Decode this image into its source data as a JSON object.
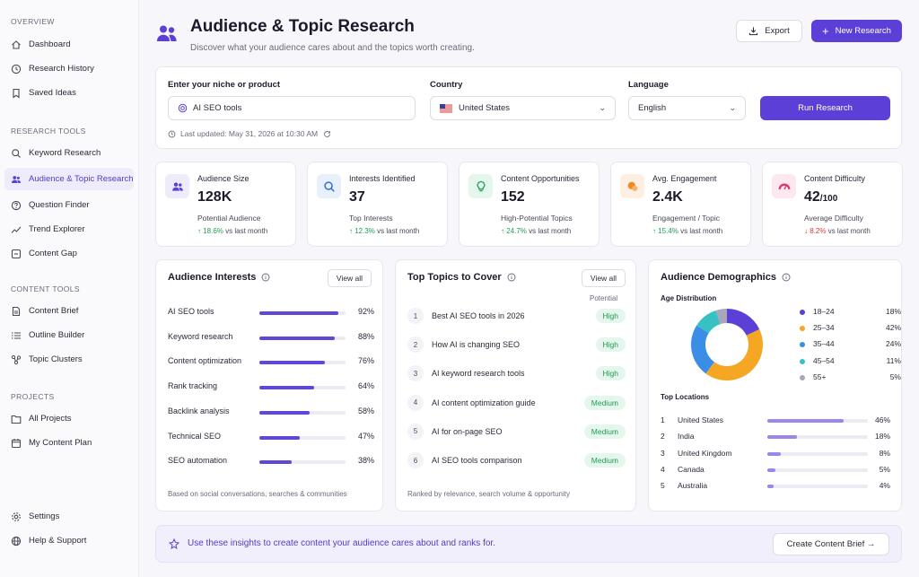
{
  "sidebar": {
    "sections": [
      {
        "title": "OVERVIEW",
        "items": [
          {
            "label": "Dashboard",
            "icon": "home-icon"
          },
          {
            "label": "Research History",
            "icon": "clock-icon"
          },
          {
            "label": "Saved Ideas",
            "icon": "bookmark-icon"
          }
        ]
      },
      {
        "title": "RESEARCH TOOLS",
        "items": [
          {
            "label": "Keyword Research",
            "icon": "search-icon"
          },
          {
            "label": "Audience & Topic Research",
            "icon": "users-icon",
            "active": true
          },
          {
            "label": "Question Finder",
            "icon": "question-icon"
          },
          {
            "label": "Trend Explorer",
            "icon": "trend-icon"
          },
          {
            "label": "Content Gap",
            "icon": "gap-icon"
          }
        ]
      },
      {
        "title": "CONTENT TOOLS",
        "items": [
          {
            "label": "Content Brief",
            "icon": "document-icon"
          },
          {
            "label": "Outline Builder",
            "icon": "list-icon"
          },
          {
            "label": "Topic Clusters",
            "icon": "cluster-icon"
          }
        ]
      },
      {
        "title": "PROJECTS",
        "items": [
          {
            "label": "All Projects",
            "icon": "folder-icon"
          },
          {
            "label": "My Content Plan",
            "icon": "calendar-icon"
          }
        ]
      }
    ],
    "bottom": [
      {
        "label": "Settings",
        "icon": "gear-icon"
      },
      {
        "label": "Help & Support",
        "icon": "globe-icon"
      }
    ]
  },
  "header": {
    "title": "Audience & Topic Research",
    "subtitle": "Discover what your audience cares about and the topics worth creating.",
    "export_label": "Export",
    "new_label": "New Research"
  },
  "form": {
    "niche_label": "Enter your niche or product",
    "niche_value": "AI SEO tools",
    "country_label": "Country",
    "country_value": "United States",
    "language_label": "Language",
    "language_value": "English",
    "run_label": "Run Research",
    "updated": "Last updated: May 31, 2026 at 10:30 AM"
  },
  "stats": [
    {
      "title": "Audience Size",
      "value": "128K",
      "suffix": "",
      "sub": "Potential Audience",
      "delta": "↑ 18.6%",
      "delta_text": " vs last month",
      "trend": "up",
      "icon": "users-icon",
      "color": "#5b3fd6",
      "bg": "#eeebfb"
    },
    {
      "title": "Interests Identified",
      "value": "37",
      "suffix": "",
      "sub": "Top Interests",
      "delta": "↑ 12.3%",
      "delta_text": " vs last month",
      "trend": "up",
      "icon": "search-icon",
      "color": "#2d6fd6",
      "bg": "#e8f0fc"
    },
    {
      "title": "Content Opportunities",
      "value": "152",
      "suffix": "",
      "sub": "High-Potential Topics",
      "delta": "↑ 24.7%",
      "delta_text": " vs last month",
      "trend": "up",
      "icon": "lightbulb-icon",
      "color": "#1f9d55",
      "bg": "#e5f6ec"
    },
    {
      "title": "Avg. Engagement",
      "value": "2.4K",
      "suffix": "",
      "sub": "Engagement / Topic",
      "delta": "↑ 15.4%",
      "delta_text": " vs last month",
      "trend": "up",
      "icon": "chat-icon",
      "color": "#f08a24",
      "bg": "#fdf0e3"
    },
    {
      "title": "Content Difficulty",
      "value": "42",
      "suffix": "/100",
      "sub": "Average Difficulty",
      "delta": "↓ 8.2%",
      "delta_text": " vs last month",
      "trend": "down",
      "icon": "gauge-icon",
      "color": "#e0366b",
      "bg": "#fde8ef"
    }
  ],
  "interests": {
    "title": "Audience Interests",
    "view_all": "View all",
    "items": [
      {
        "name": "AI SEO tools",
        "pct": 92,
        "label": "92%"
      },
      {
        "name": "Keyword research",
        "pct": 88,
        "label": "88%"
      },
      {
        "name": "Content optimization",
        "pct": 76,
        "label": "76%"
      },
      {
        "name": "Rank tracking",
        "pct": 64,
        "label": "64%"
      },
      {
        "name": "Backlink analysis",
        "pct": 58,
        "label": "58%"
      },
      {
        "name": "Technical SEO",
        "pct": 47,
        "label": "47%"
      },
      {
        "name": "SEO automation",
        "pct": 38,
        "label": "38%"
      }
    ],
    "footnote": "Based on social conversations, searches & communities"
  },
  "topics": {
    "title": "Top Topics to Cover",
    "view_all": "View all",
    "potential_label": "Potential",
    "items": [
      {
        "num": "1",
        "name": "Best AI SEO tools in 2026",
        "potential": "High"
      },
      {
        "num": "2",
        "name": "How AI is changing SEO",
        "potential": "High"
      },
      {
        "num": "3",
        "name": "AI keyword research tools",
        "potential": "High"
      },
      {
        "num": "4",
        "name": "AI content optimization guide",
        "potential": "Medium"
      },
      {
        "num": "5",
        "name": "AI for on-page SEO",
        "potential": "Medium"
      },
      {
        "num": "6",
        "name": "AI SEO tools comparison",
        "potential": "Medium"
      }
    ],
    "footnote": "Ranked by relevance, search volume & opportunity"
  },
  "demographics": {
    "title": "Audience Demographics",
    "age_title": "Age Distribution",
    "locations_title": "Top Locations",
    "locations": [
      {
        "rank": "1",
        "name": "United States",
        "pct": 46,
        "label": "46%"
      },
      {
        "rank": "2",
        "name": "India",
        "pct": 18,
        "label": "18%"
      },
      {
        "rank": "3",
        "name": "United Kingdom",
        "pct": 8,
        "label": "8%"
      },
      {
        "rank": "4",
        "name": "Canada",
        "pct": 5,
        "label": "5%"
      },
      {
        "rank": "5",
        "name": "Australia",
        "pct": 4,
        "label": "4%"
      }
    ]
  },
  "chart_data": {
    "type": "pie",
    "title": "Age Distribution",
    "categories": [
      "18–24",
      "25–34",
      "35–44",
      "45–54",
      "55+"
    ],
    "values": [
      18,
      42,
      24,
      11,
      5
    ],
    "labels": [
      "18%",
      "42%",
      "24%",
      "11%",
      "5%"
    ],
    "colors": [
      "#5b3fd6",
      "#f5a623",
      "#3a8ee6",
      "#36c2c2",
      "#a9a6b8"
    ]
  },
  "banner": {
    "text": "Use these insights to create content your audience cares about and ranks for.",
    "button": "Create Content Brief →"
  }
}
